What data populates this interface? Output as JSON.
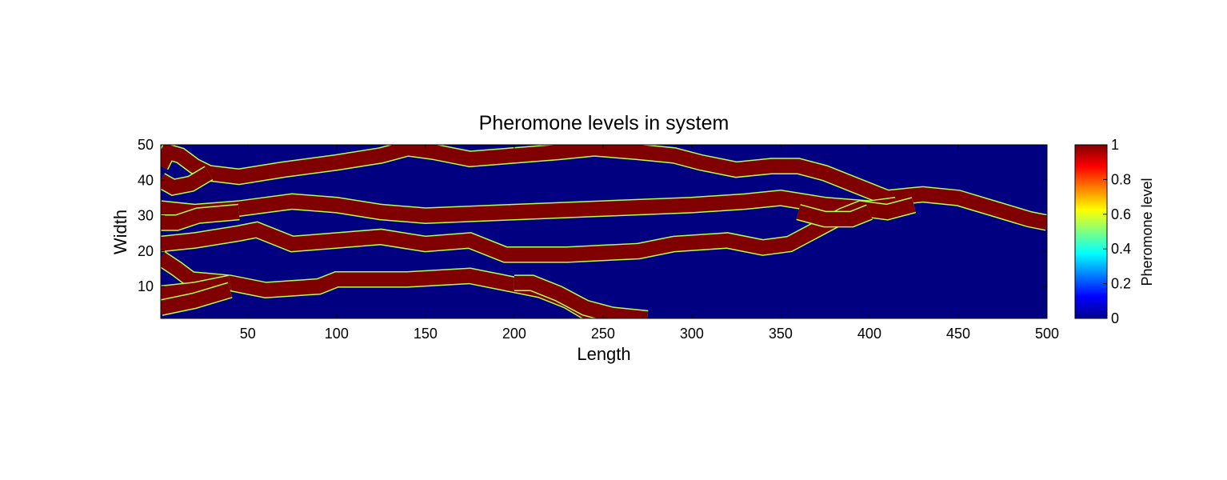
{
  "chart_data": {
    "type": "heatmap",
    "title": "Pheromone levels in system",
    "xlabel": "Length",
    "ylabel": "Width",
    "xlim": [
      1,
      500
    ],
    "ylim": [
      1,
      50
    ],
    "x_ticks": [
      50,
      100,
      150,
      200,
      250,
      300,
      350,
      400,
      450,
      500
    ],
    "y_ticks": [
      10,
      20,
      30,
      40,
      50
    ],
    "colormap": "jet",
    "background_value": 0,
    "trail_value": 1,
    "trail_half_width": 2,
    "colorbar": {
      "label": "Pheromone level",
      "ticks": [
        0,
        0.2,
        0.4,
        0.6,
        0.8,
        1
      ],
      "range": [
        0,
        1
      ]
    },
    "trails": [
      {
        "points": [
          [
            1,
            44
          ],
          [
            5,
            48
          ],
          [
            12,
            47
          ],
          [
            20,
            44
          ],
          [
            28,
            42
          ],
          [
            45,
            41
          ],
          [
            70,
            43
          ],
          [
            100,
            45
          ],
          [
            125,
            47
          ],
          [
            140,
            49
          ],
          [
            155,
            48
          ],
          [
            175,
            46
          ],
          [
            200,
            47
          ],
          [
            225,
            48
          ],
          [
            245,
            49
          ],
          [
            270,
            48
          ],
          [
            290,
            47
          ],
          [
            305,
            45
          ],
          [
            325,
            43
          ],
          [
            345,
            44
          ],
          [
            360,
            44
          ],
          [
            375,
            42
          ],
          [
            395,
            38
          ],
          [
            410,
            35
          ],
          [
            430,
            36
          ],
          [
            450,
            35
          ],
          [
            470,
            32
          ],
          [
            490,
            29
          ],
          [
            500,
            28
          ]
        ]
      },
      {
        "points": [
          [
            1,
            40
          ],
          [
            8,
            38
          ],
          [
            18,
            39
          ],
          [
            28,
            42
          ]
        ]
      },
      {
        "points": [
          [
            1,
            32
          ],
          [
            20,
            31
          ],
          [
            45,
            32
          ],
          [
            75,
            34
          ],
          [
            100,
            33
          ],
          [
            125,
            31
          ],
          [
            150,
            30
          ],
          [
            200,
            31
          ],
          [
            250,
            32
          ],
          [
            300,
            33
          ],
          [
            330,
            34
          ],
          [
            350,
            35
          ],
          [
            375,
            33
          ],
          [
            400,
            32
          ],
          [
            415,
            33
          ]
        ]
      },
      {
        "points": [
          [
            1,
            28
          ],
          [
            10,
            28
          ],
          [
            22,
            30
          ],
          [
            45,
            31
          ]
        ]
      },
      {
        "points": [
          [
            1,
            22
          ],
          [
            20,
            23
          ],
          [
            45,
            25
          ],
          [
            55,
            26
          ],
          [
            75,
            22
          ],
          [
            100,
            23
          ],
          [
            125,
            24
          ],
          [
            150,
            22
          ],
          [
            175,
            23
          ],
          [
            195,
            19
          ],
          [
            230,
            19
          ],
          [
            270,
            20
          ],
          [
            290,
            22
          ],
          [
            320,
            23
          ],
          [
            340,
            21
          ],
          [
            355,
            22
          ],
          [
            370,
            26
          ],
          [
            385,
            30
          ],
          [
            395,
            32
          ],
          [
            410,
            31
          ],
          [
            425,
            33
          ]
        ]
      },
      {
        "points": [
          [
            1,
            18
          ],
          [
            10,
            15
          ],
          [
            18,
            12
          ],
          [
            40,
            11
          ],
          [
            60,
            9
          ],
          [
            90,
            10
          ],
          [
            100,
            12
          ],
          [
            140,
            12
          ],
          [
            175,
            13
          ],
          [
            195,
            11
          ],
          [
            215,
            9
          ],
          [
            230,
            6
          ],
          [
            240,
            3
          ],
          [
            250,
            1
          ]
        ]
      },
      {
        "points": [
          [
            1,
            8
          ],
          [
            20,
            9
          ],
          [
            40,
            11
          ]
        ]
      },
      {
        "points": [
          [
            1,
            4
          ],
          [
            20,
            6
          ],
          [
            40,
            9
          ]
        ]
      },
      {
        "points": [
          [
            200,
            11
          ],
          [
            210,
            11
          ],
          [
            225,
            8
          ],
          [
            240,
            4
          ],
          [
            255,
            2
          ],
          [
            275,
            1
          ]
        ]
      },
      {
        "points": [
          [
            360,
            31
          ],
          [
            375,
            29
          ],
          [
            390,
            29
          ],
          [
            400,
            31
          ]
        ]
      }
    ]
  }
}
